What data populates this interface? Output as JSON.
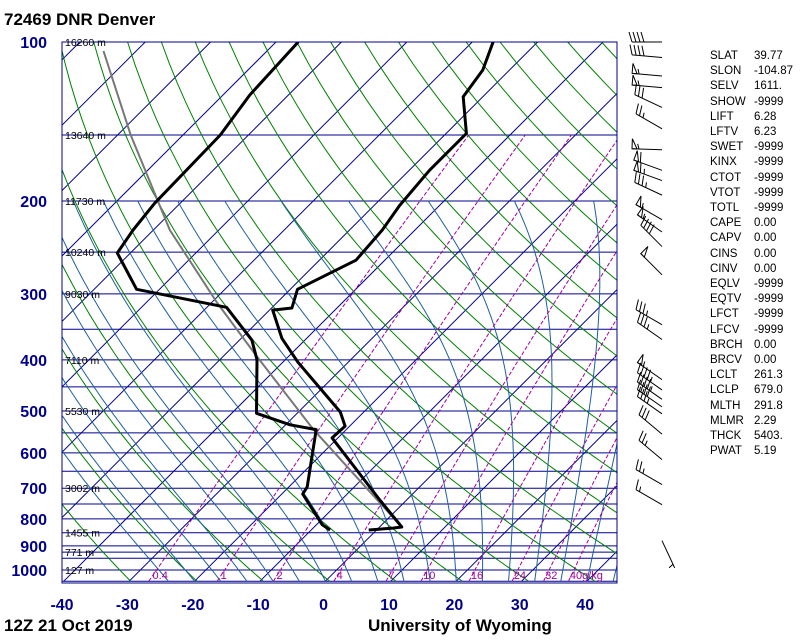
{
  "header": {
    "title": "72469 DNR Denver"
  },
  "footer": {
    "date": "12Z 21 Oct 2019",
    "source": "University of Wyoming"
  },
  "colors": {
    "isobar": "#00008b",
    "isotherm": "#00008b",
    "dry_adiabat": "#008000",
    "moist_adiabat": "#1f5f9f",
    "mixing_ratio": "#a000a0",
    "sounding": "#000000",
    "parcel": "#777777"
  },
  "chart_data": {
    "type": "skew-t",
    "title": "72469 DNR Denver",
    "pressure_ticks": [
      100,
      200,
      300,
      400,
      500,
      600,
      700,
      800,
      900,
      1000
    ],
    "pressure_tick_labels": [
      "100",
      "200",
      "300",
      "400",
      "500",
      "600",
      "700",
      "800",
      "900",
      "1000"
    ],
    "temperature_ticks": [
      -40,
      -30,
      -20,
      -10,
      0,
      10,
      20,
      30,
      40
    ],
    "temperature_tick_labels": [
      "-40",
      "-30",
      "-20",
      "-10",
      "0",
      "10",
      "20",
      "30",
      "40"
    ],
    "pressure_range": [
      100,
      1050
    ],
    "temperature_range_at_bottom": [
      -40,
      45
    ],
    "height_labels": [
      {
        "p": 100,
        "text": "16260 m"
      },
      {
        "p": 150,
        "text": "13640 m"
      },
      {
        "p": 200,
        "text": "11730 m"
      },
      {
        "p": 250,
        "text": "10240 m"
      },
      {
        "p": 300,
        "text": "9030 m"
      },
      {
        "p": 400,
        "text": "7110 m"
      },
      {
        "p": 500,
        "text": "5530 m"
      },
      {
        "p": 700,
        "text": "3002 m"
      },
      {
        "p": 850,
        "text": "1455 m"
      },
      {
        "p": 925,
        "text": "771 m"
      },
      {
        "p": 1000,
        "text": "127 m"
      }
    ],
    "mixing_ratio_lines": [
      0.4,
      1,
      2,
      4,
      7,
      10,
      16,
      24,
      32,
      40
    ],
    "mixing_ratio_labels": [
      "0.4",
      "1",
      "2",
      "4",
      "7",
      "10",
      "16",
      "24",
      "32",
      "40g/kg"
    ],
    "temperature": [
      {
        "p": 840,
        "t": -1.2
      },
      {
        "p": 833,
        "t": 2.2
      },
      {
        "p": 829,
        "t": 3.4
      },
      {
        "p": 737,
        "t": -4.1
      },
      {
        "p": 562,
        "t": -20.9
      },
      {
        "p": 534,
        "t": -20.7
      },
      {
        "p": 502,
        "t": -23.6
      },
      {
        "p": 404,
        "t": -37.7
      },
      {
        "p": 364,
        "t": -43.8
      },
      {
        "p": 322,
        "t": -49.5
      },
      {
        "p": 319,
        "t": -46.9
      },
      {
        "p": 294,
        "t": -48.9
      },
      {
        "p": 259,
        "t": -44.4
      },
      {
        "p": 227,
        "t": -45.0
      },
      {
        "p": 204,
        "t": -46.1
      },
      {
        "p": 175,
        "t": -46.9
      },
      {
        "p": 149,
        "t": -46.9
      },
      {
        "p": 127,
        "t": -53.0
      },
      {
        "p": 113,
        "t": -54.1
      },
      {
        "p": 100,
        "t": -56.8
      }
    ],
    "dewpoint": [
      {
        "p": 840,
        "t": -7.1
      },
      {
        "p": 821,
        "t": -9.1
      },
      {
        "p": 718,
        "t": -16.8
      },
      {
        "p": 696,
        "t": -17.2
      },
      {
        "p": 542,
        "t": -24.6
      },
      {
        "p": 531,
        "t": -29.3
      },
      {
        "p": 505,
        "t": -36.2
      },
      {
        "p": 400,
        "t": -44.3
      },
      {
        "p": 367,
        "t": -48.1
      },
      {
        "p": 318,
        "t": -57.0
      },
      {
        "p": 294,
        "t": -73.5
      },
      {
        "p": 251,
        "t": -82.0
      },
      {
        "p": 227,
        "t": -83.1
      },
      {
        "p": 202,
        "t": -83.9
      },
      {
        "p": 150,
        "t": -84.3
      },
      {
        "p": 126,
        "t": -85.9
      },
      {
        "p": 100,
        "t": -86.6
      }
    ],
    "parcel": [
      {
        "p": 829,
        "t": 3.4
      },
      {
        "p": 542,
        "t": -25.0
      },
      {
        "p": 395,
        "t": -44.7
      },
      {
        "p": 312,
        "t": -59.1
      },
      {
        "p": 227,
        "t": -77.5
      },
      {
        "p": 150,
        "t": -98.0
      },
      {
        "p": 104,
        "t": -115.0
      }
    ],
    "wind_barbs": [
      {
        "p": 100,
        "dir": 270,
        "kt": 40
      },
      {
        "p": 107,
        "dir": 275,
        "kt": 40
      },
      {
        "p": 116,
        "dir": 275,
        "kt": 55
      },
      {
        "p": 122,
        "dir": 275,
        "kt": 55
      },
      {
        "p": 133,
        "dir": 295,
        "kt": 30
      },
      {
        "p": 146,
        "dir": 300,
        "kt": 25
      },
      {
        "p": 160,
        "dir": 272,
        "kt": 55
      },
      {
        "p": 175,
        "dir": 290,
        "kt": 60
      },
      {
        "p": 183,
        "dir": 290,
        "kt": 65
      },
      {
        "p": 195,
        "dir": 295,
        "kt": 35
      },
      {
        "p": 217,
        "dir": 300,
        "kt": 55
      },
      {
        "p": 229,
        "dir": 305,
        "kt": 55
      },
      {
        "p": 244,
        "dir": 315,
        "kt": 40
      },
      {
        "p": 276,
        "dir": 315,
        "kt": 50
      },
      {
        "p": 343,
        "dir": 300,
        "kt": 35
      },
      {
        "p": 366,
        "dir": 305,
        "kt": 35
      },
      {
        "p": 436,
        "dir": 305,
        "kt": 55
      },
      {
        "p": 456,
        "dir": 305,
        "kt": 45
      },
      {
        "p": 475,
        "dir": 305,
        "kt": 45
      },
      {
        "p": 491,
        "dir": 305,
        "kt": 40
      },
      {
        "p": 506,
        "dir": 305,
        "kt": 35
      },
      {
        "p": 553,
        "dir": 310,
        "kt": 30
      },
      {
        "p": 618,
        "dir": 310,
        "kt": 25
      },
      {
        "p": 689,
        "dir": 300,
        "kt": 25
      },
      {
        "p": 752,
        "dir": 300,
        "kt": 15
      },
      {
        "p": 880,
        "dir": 155,
        "kt": 5
      }
    ]
  },
  "stats": [
    {
      "k": "SLAT",
      "v": "39.77"
    },
    {
      "k": "SLON",
      "v": "-104.87"
    },
    {
      "k": "SELV",
      "v": "1611."
    },
    {
      "k": "SHOW",
      "v": "-9999"
    },
    {
      "k": "LIFT",
      "v": "6.28"
    },
    {
      "k": "LFTV",
      "v": "6.23"
    },
    {
      "k": "SWET",
      "v": "-9999"
    },
    {
      "k": "KINX",
      "v": "-9999"
    },
    {
      "k": "CTOT",
      "v": "-9999"
    },
    {
      "k": "VTOT",
      "v": "-9999"
    },
    {
      "k": "TOTL",
      "v": "-9999"
    },
    {
      "k": "CAPE",
      "v": "0.00"
    },
    {
      "k": "CAPV",
      "v": "0.00"
    },
    {
      "k": "CINS",
      "v": "0.00"
    },
    {
      "k": "CINV",
      "v": "0.00"
    },
    {
      "k": "EQLV",
      "v": "-9999"
    },
    {
      "k": "EQTV",
      "v": "-9999"
    },
    {
      "k": "LFCT",
      "v": "-9999"
    },
    {
      "k": "LFCV",
      "v": "-9999"
    },
    {
      "k": "BRCH",
      "v": "0.00"
    },
    {
      "k": "BRCV",
      "v": "0.00"
    },
    {
      "k": "LCLT",
      "v": "261.3"
    },
    {
      "k": "LCLP",
      "v": "679.0"
    },
    {
      "k": "MLTH",
      "v": "291.8"
    },
    {
      "k": "MLMR",
      "v": "2.29"
    },
    {
      "k": "THCK",
      "v": "5403."
    },
    {
      "k": "PWAT",
      "v": "5.19"
    }
  ]
}
